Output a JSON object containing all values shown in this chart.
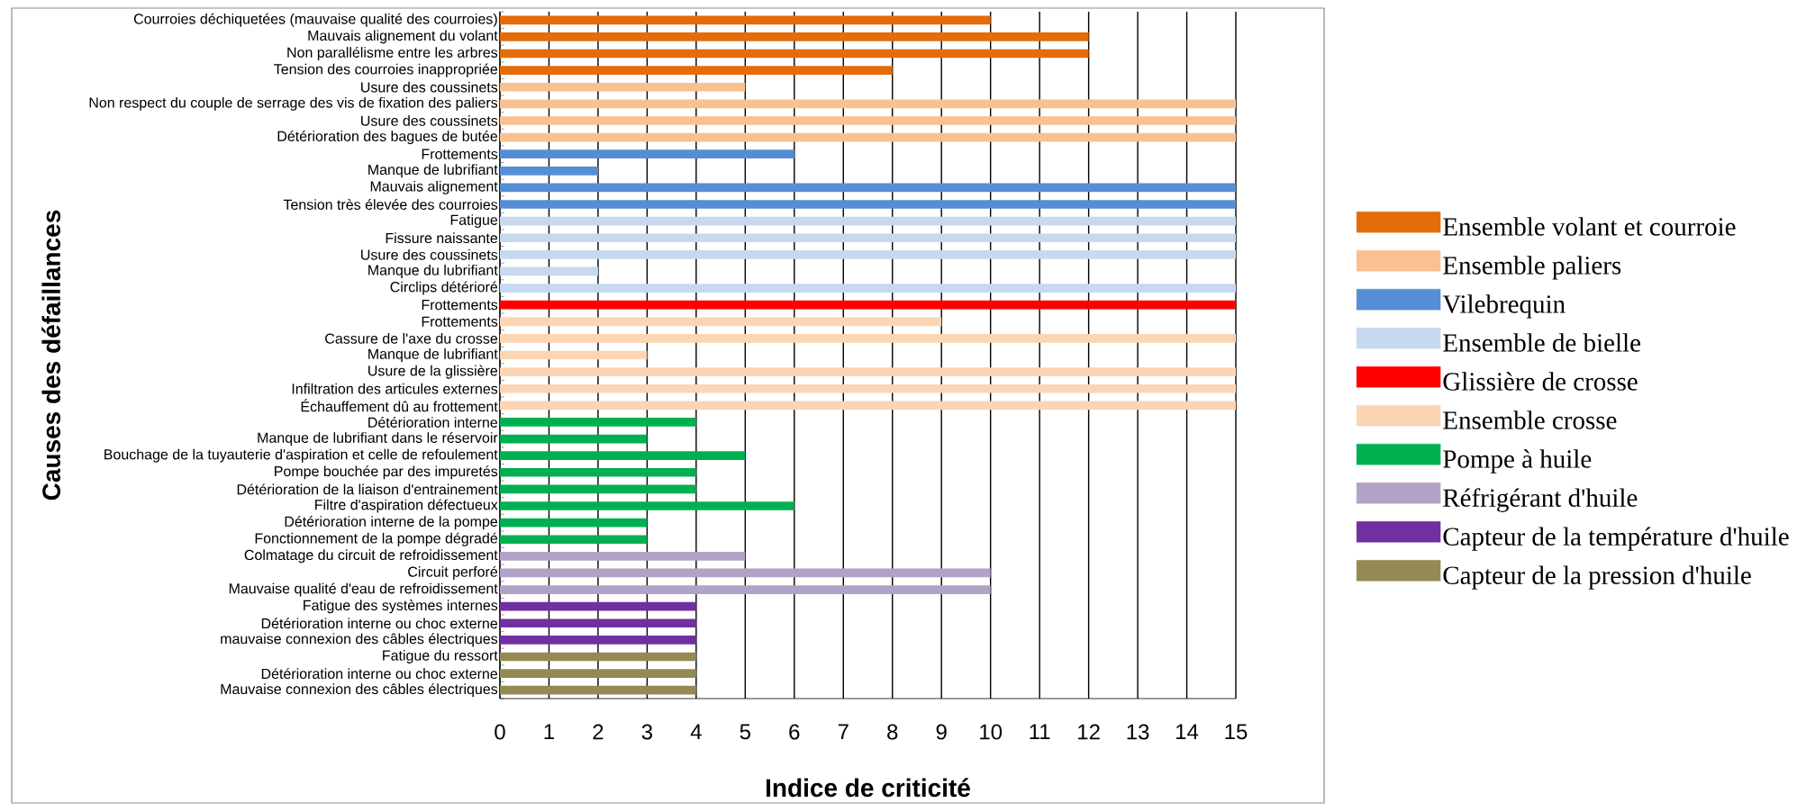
{
  "chart_data": {
    "type": "bar",
    "orientation": "horizontal",
    "xlabel": "Indice de criticité",
    "ylabel": "Causes des défaillances",
    "categories": [
      "Courroies déchiquetées (mauvaise qualité des courroies)",
      "Mauvais alignement du volant",
      "Non parallélisme entre les arbres",
      "Tension des courroies inappropriée",
      "Usure des coussinets",
      "Non respect du couple de serrage des vis de fixation des paliers",
      "Usure des coussinets",
      "Détérioration des bagues de butée",
      "Frottements",
      "Manque de lubrifiant",
      "Mauvais alignement",
      "Tension très élevée des courroies",
      "Fatigue",
      "Fissure naissante",
      "Usure des coussinets",
      "Manque du lubrifiant",
      "Circlips détérioré",
      "Frottements",
      "Frottements",
      "Cassure de l'axe du crosse",
      "Manque de lubrifiant",
      "Usure de la glissière",
      "Infiltration des articules externes",
      "Échauffement dû au frottement",
      "Détérioration interne",
      "Manque de lubrifiant dans le réservoir",
      "Bouchage de la tuyauterie d'aspiration et celle de refoulement",
      "Pompe bouchée par des impuretés",
      "Détérioration de la liaison d'entrainement",
      "Filtre d'aspiration défectueux",
      "Détérioration interne de la pompe",
      "Fonctionnement de la pompe dégradé",
      "Colmatage du circuit de refroidissement",
      "Circuit perforé",
      "Mauvaise qualité d'eau de refroidissement",
      "Fatigue des systèmes internes",
      "Détérioration interne ou choc externe",
      "mauvaise connexion des câbles électriques",
      "Fatigue du ressort",
      "Détérioration interne ou choc externe",
      "Mauvaise connexion des câbles électriques"
    ],
    "series": [
      {
        "name": "Ensemble volant et courroie",
        "color": "#e46c0a",
        "values": [
          10,
          12,
          12,
          8,
          null,
          null,
          null,
          null,
          null,
          null,
          null,
          null,
          null,
          null,
          null,
          null,
          null,
          null,
          null,
          null,
          null,
          null,
          null,
          null,
          null,
          null,
          null,
          null,
          null,
          null,
          null,
          null,
          null,
          null,
          null,
          null,
          null,
          null,
          null,
          null,
          null
        ]
      },
      {
        "name": "Ensemble paliers",
        "color": "#fac090",
        "values": [
          null,
          null,
          null,
          null,
          5,
          15,
          15,
          15,
          null,
          null,
          null,
          null,
          null,
          null,
          null,
          null,
          null,
          null,
          null,
          null,
          null,
          null,
          null,
          null,
          null,
          null,
          null,
          null,
          null,
          null,
          null,
          null,
          null,
          null,
          null,
          null,
          null,
          null,
          null,
          null,
          null
        ]
      },
      {
        "name": "Vilebrequin",
        "color": "#558ed5",
        "values": [
          null,
          null,
          null,
          null,
          null,
          null,
          null,
          null,
          6,
          2,
          15,
          15,
          null,
          null,
          null,
          null,
          null,
          null,
          null,
          null,
          null,
          null,
          null,
          null,
          null,
          null,
          null,
          null,
          null,
          null,
          null,
          null,
          null,
          null,
          null,
          null,
          null,
          null,
          null,
          null,
          null
        ]
      },
      {
        "name": "Ensemble de bielle",
        "color": "#c6d9f1",
        "values": [
          null,
          null,
          null,
          null,
          null,
          null,
          null,
          null,
          null,
          null,
          null,
          null,
          15,
          15,
          15,
          2,
          15,
          null,
          null,
          null,
          null,
          null,
          null,
          null,
          null,
          null,
          null,
          null,
          null,
          null,
          null,
          null,
          null,
          null,
          null,
          null,
          null,
          null,
          null,
          null,
          null
        ]
      },
      {
        "name": "Glissière de crosse",
        "color": "#ff0000",
        "values": [
          null,
          null,
          null,
          null,
          null,
          null,
          null,
          null,
          null,
          null,
          null,
          null,
          null,
          null,
          null,
          null,
          null,
          15,
          null,
          null,
          null,
          null,
          null,
          null,
          null,
          null,
          null,
          null,
          null,
          null,
          null,
          null,
          null,
          null,
          null,
          null,
          null,
          null,
          null,
          null,
          null
        ]
      },
      {
        "name": "Ensemble crosse",
        "color": "#fcd5b5",
        "values": [
          null,
          null,
          null,
          null,
          null,
          null,
          null,
          null,
          null,
          null,
          null,
          null,
          null,
          null,
          null,
          null,
          null,
          null,
          9,
          15,
          3,
          15,
          15,
          15,
          null,
          null,
          null,
          null,
          null,
          null,
          null,
          null,
          null,
          null,
          null,
          null,
          null,
          null,
          null,
          null,
          null
        ]
      },
      {
        "name": "Pompe à huile",
        "color": "#00b050",
        "values": [
          null,
          null,
          null,
          null,
          null,
          null,
          null,
          null,
          null,
          null,
          null,
          null,
          null,
          null,
          null,
          null,
          null,
          null,
          null,
          null,
          null,
          null,
          null,
          null,
          4,
          3,
          5,
          4,
          4,
          6,
          3,
          3,
          null,
          null,
          null,
          null,
          null,
          null,
          null,
          null,
          null
        ]
      },
      {
        "name": "Réfrigérant d'huile",
        "color": "#b3a2c7",
        "values": [
          null,
          null,
          null,
          null,
          null,
          null,
          null,
          null,
          null,
          null,
          null,
          null,
          null,
          null,
          null,
          null,
          null,
          null,
          null,
          null,
          null,
          null,
          null,
          null,
          null,
          null,
          null,
          null,
          null,
          null,
          null,
          null,
          5,
          10,
          10,
          null,
          null,
          null,
          null,
          null,
          null
        ]
      },
      {
        "name": "Capteur de la température d'huile",
        "color": "#7030a0",
        "values": [
          null,
          null,
          null,
          null,
          null,
          null,
          null,
          null,
          null,
          null,
          null,
          null,
          null,
          null,
          null,
          null,
          null,
          null,
          null,
          null,
          null,
          null,
          null,
          null,
          null,
          null,
          null,
          null,
          null,
          null,
          null,
          null,
          null,
          null,
          null,
          4,
          4,
          4,
          null,
          null,
          null
        ]
      },
      {
        "name": "Capteur de la pression d'huile",
        "color": "#948a54",
        "values": [
          null,
          null,
          null,
          null,
          null,
          null,
          null,
          null,
          null,
          null,
          null,
          null,
          null,
          null,
          null,
          null,
          null,
          null,
          null,
          null,
          null,
          null,
          null,
          null,
          null,
          null,
          null,
          null,
          null,
          null,
          null,
          null,
          null,
          null,
          null,
          null,
          null,
          null,
          4,
          4,
          4
        ]
      }
    ],
    "xlim": [
      0,
      15
    ],
    "xticks": [
      0,
      1,
      2,
      3,
      4,
      5,
      6,
      7,
      8,
      9,
      10,
      11,
      12,
      13,
      14,
      15
    ],
    "grid": "x",
    "legend": "right"
  }
}
